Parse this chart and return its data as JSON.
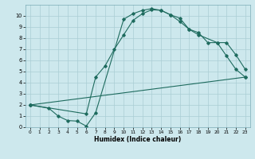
{
  "xlabel": "Humidex (Indice chaleur)",
  "ylabel": "",
  "xlim": [
    -0.5,
    23.5
  ],
  "ylim": [
    0,
    11
  ],
  "xticks": [
    0,
    1,
    2,
    3,
    4,
    5,
    6,
    7,
    8,
    9,
    10,
    11,
    12,
    13,
    14,
    15,
    16,
    17,
    18,
    19,
    20,
    21,
    22,
    23
  ],
  "yticks": [
    0,
    1,
    2,
    3,
    4,
    5,
    6,
    7,
    8,
    9,
    10
  ],
  "background_color": "#cde8ed",
  "grid_color": "#aacdd4",
  "line_color": "#1e6b5e",
  "line1_x": [
    0,
    2,
    3,
    4,
    5,
    6,
    7,
    10,
    11,
    12,
    13,
    14,
    15,
    16,
    17,
    18,
    20,
    21,
    22,
    23
  ],
  "line1_y": [
    2.0,
    1.7,
    1.0,
    0.6,
    0.55,
    0.1,
    1.3,
    9.7,
    10.2,
    10.5,
    10.65,
    10.5,
    10.1,
    9.5,
    8.8,
    8.3,
    7.6,
    6.4,
    5.2,
    4.5
  ],
  "line2_x": [
    0,
    6,
    7,
    8,
    9,
    10,
    11,
    12,
    13,
    14,
    15,
    16,
    17,
    18,
    19,
    20,
    21,
    22,
    23
  ],
  "line2_y": [
    2.0,
    1.2,
    4.5,
    5.5,
    7.0,
    8.3,
    9.6,
    10.2,
    10.55,
    10.5,
    10.1,
    9.8,
    8.8,
    8.5,
    7.6,
    7.6,
    7.6,
    6.5,
    5.2
  ],
  "line3_x": [
    0,
    23
  ],
  "line3_y": [
    2.0,
    4.5
  ]
}
